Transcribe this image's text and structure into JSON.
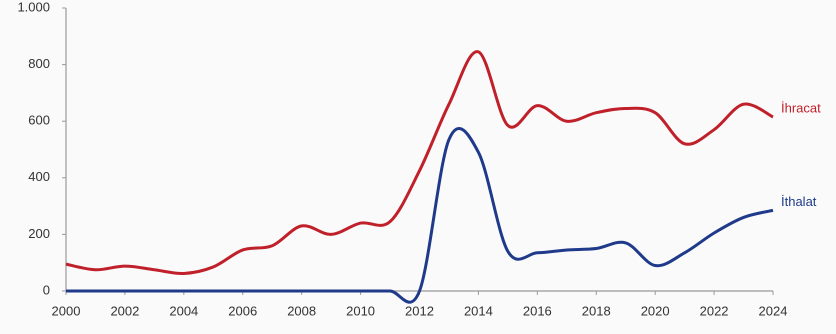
{
  "chart_data": {
    "type": "line",
    "x": [
      2000,
      2001,
      2002,
      2003,
      2004,
      2005,
      2006,
      2007,
      2008,
      2009,
      2010,
      2011,
      2012,
      2013,
      2014,
      2015,
      2016,
      2017,
      2018,
      2019,
      2020,
      2021,
      2022,
      2023,
      2024
    ],
    "series": [
      {
        "name": "İhracat",
        "color": "#c0202a",
        "values": [
          95,
          75,
          88,
          75,
          62,
          85,
          145,
          160,
          230,
          200,
          240,
          245,
          425,
          660,
          845,
          585,
          655,
          600,
          630,
          645,
          630,
          520,
          570,
          660,
          615
        ]
      },
      {
        "name": "İthalat",
        "color": "#1f3a8a",
        "values": [
          0,
          0,
          0,
          0,
          0,
          0,
          0,
          0,
          0,
          0,
          0,
          0,
          0,
          535,
          490,
          140,
          135,
          145,
          150,
          170,
          90,
          135,
          205,
          260,
          285
        ]
      }
    ],
    "xlim": [
      2000,
      2024
    ],
    "xticks": [
      2000,
      2002,
      2004,
      2006,
      2008,
      2010,
      2012,
      2014,
      2016,
      2018,
      2020,
      2022,
      2024
    ],
    "ylim": [
      0,
      1000
    ],
    "yticks": [
      0,
      200,
      400,
      600,
      800,
      {
        "value": 1000,
        "label": "1.000"
      }
    ]
  }
}
